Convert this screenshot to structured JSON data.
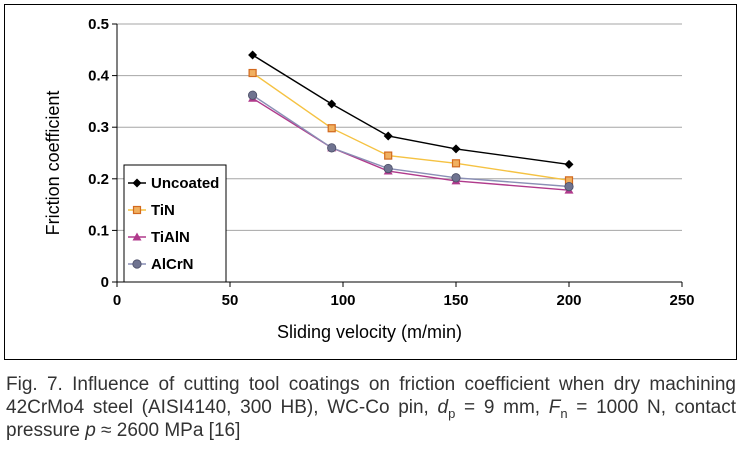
{
  "chart_data": {
    "type": "line",
    "title": "",
    "xlabel": "Sliding  velocity  (m/min)",
    "ylabel": "Friction coefficient",
    "xlim": [
      0,
      250
    ],
    "ylim": [
      0,
      0.5
    ],
    "x_ticks": [
      "0",
      "50",
      "100",
      "150",
      "200",
      "250"
    ],
    "y_ticks": [
      "0",
      "0.1",
      "0.2",
      "0.3",
      "0.4",
      "0.5"
    ],
    "grid": "horizontal",
    "legend_position": "left-inside",
    "x": [
      60,
      95,
      120,
      150,
      200
    ],
    "series": [
      {
        "name": "Uncoated",
        "values": [
          0.44,
          0.345,
          0.283,
          0.258,
          0.228
        ],
        "color": "#000000",
        "marker": "diamond"
      },
      {
        "name": "TiN",
        "values": [
          0.405,
          0.298,
          0.245,
          0.23,
          0.197
        ],
        "color": "#f5c242",
        "marker": "square",
        "marker_color": "#d2691e"
      },
      {
        "name": "TiAlN",
        "values": [
          0.356,
          0.26,
          0.215,
          0.196,
          0.178
        ],
        "color": "#b03a8c",
        "marker": "triangle"
      },
      {
        "name": "AlCrN",
        "values": [
          0.362,
          0.26,
          0.22,
          0.202,
          0.185
        ],
        "color": "#8a8fb5",
        "marker": "circle",
        "marker_color": "#6f7390"
      }
    ]
  },
  "caption": {
    "fig_label": "Fig. 7.",
    "text_part1": " Influence of cutting tool coatings on friction coefficient when dry machining 42CrMo4 steel (AISI4140, 300 HB), WC-Co pin, ",
    "d_symbol": "d",
    "d_sub": "p",
    "text_part2": " = 9 mm, ",
    "f_symbol": "F",
    "f_sub": "n",
    "text_part3": " = 1000 N, contact pressure ",
    "p_symbol": "p",
    "text_part4": " ≈ 2600 MPa [16]"
  }
}
